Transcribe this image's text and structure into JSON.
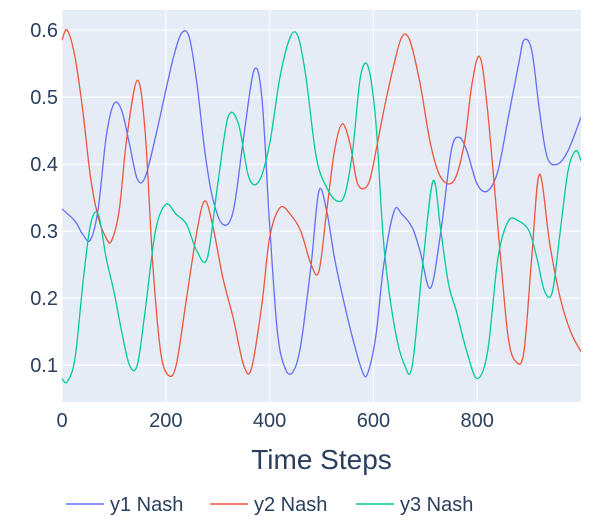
{
  "chart_data": {
    "type": "line",
    "xlabel": "Time Steps",
    "ylabel": "",
    "xlim": [
      0,
      1000
    ],
    "ylim": [
      0.045,
      0.63
    ],
    "xticks": [
      0,
      200,
      400,
      600,
      800
    ],
    "yticks": [
      0.1,
      0.2,
      0.3,
      0.4,
      0.5,
      0.6
    ],
    "grid": true,
    "legend_position": "bottom",
    "series": [
      {
        "name": "y1 Nash",
        "color": "#636efa",
        "x": [
          0,
          25,
          40,
          55,
          70,
          85,
          100,
          115,
          130,
          145,
          160,
          180,
          200,
          215,
          230,
          245,
          260,
          275,
          290,
          310,
          330,
          350,
          370,
          385,
          400,
          415,
          430,
          445,
          460,
          480,
          495,
          510,
          525,
          540,
          560,
          580,
          590,
          605,
          620,
          640,
          655,
          675,
          690,
          710,
          730,
          750,
          765,
          780,
          800,
          820,
          840,
          860,
          880,
          890,
          905,
          920,
          935,
          955,
          975,
          1000
        ],
        "y": [
          0.333,
          0.315,
          0.295,
          0.287,
          0.335,
          0.44,
          0.49,
          0.48,
          0.43,
          0.378,
          0.38,
          0.44,
          0.51,
          0.56,
          0.595,
          0.59,
          0.52,
          0.42,
          0.35,
          0.31,
          0.33,
          0.44,
          0.54,
          0.5,
          0.31,
          0.15,
          0.095,
          0.09,
          0.13,
          0.25,
          0.36,
          0.33,
          0.26,
          0.205,
          0.14,
          0.088,
          0.09,
          0.145,
          0.25,
          0.33,
          0.325,
          0.305,
          0.27,
          0.215,
          0.3,
          0.42,
          0.44,
          0.42,
          0.37,
          0.36,
          0.39,
          0.47,
          0.55,
          0.585,
          0.57,
          0.48,
          0.41,
          0.4,
          0.42,
          0.47
        ]
      },
      {
        "name": "y2 Nash",
        "color": "#ef553b",
        "x": [
          0,
          10,
          25,
          40,
          55,
          70,
          85,
          95,
          110,
          125,
          145,
          160,
          175,
          190,
          205,
          220,
          240,
          260,
          275,
          290,
          310,
          330,
          350,
          365,
          385,
          400,
          420,
          440,
          460,
          480,
          495,
          510,
          525,
          540,
          555,
          570,
          590,
          605,
          620,
          640,
          655,
          670,
          690,
          710,
          730,
          755,
          775,
          790,
          805,
          820,
          845,
          860,
          875,
          890,
          905,
          920,
          940,
          960,
          980,
          1000
        ],
        "y": [
          0.585,
          0.6,
          0.56,
          0.48,
          0.38,
          0.32,
          0.29,
          0.285,
          0.33,
          0.44,
          0.525,
          0.45,
          0.25,
          0.12,
          0.085,
          0.1,
          0.2,
          0.3,
          0.345,
          0.31,
          0.23,
          0.17,
          0.1,
          0.095,
          0.19,
          0.29,
          0.335,
          0.325,
          0.3,
          0.25,
          0.24,
          0.33,
          0.42,
          0.46,
          0.43,
          0.37,
          0.37,
          0.42,
          0.48,
          0.55,
          0.59,
          0.585,
          0.52,
          0.43,
          0.38,
          0.375,
          0.43,
          0.52,
          0.56,
          0.48,
          0.26,
          0.14,
          0.105,
          0.12,
          0.26,
          0.385,
          0.28,
          0.2,
          0.15,
          0.12
        ]
      },
      {
        "name": "y3 Nash",
        "color": "#00cc96",
        "x": [
          0,
          10,
          25,
          40,
          55,
          70,
          85,
          100,
          115,
          130,
          145,
          160,
          180,
          200,
          220,
          240,
          260,
          280,
          300,
          320,
          340,
          360,
          380,
          400,
          420,
          440,
          455,
          470,
          490,
          510,
          530,
          545,
          560,
          575,
          590,
          605,
          620,
          640,
          660,
          675,
          695,
          715,
          730,
          745,
          760,
          780,
          800,
          820,
          840,
          860,
          880,
          900,
          915,
          930,
          945,
          960,
          975,
          990,
          1000
        ],
        "y": [
          0.08,
          0.075,
          0.11,
          0.22,
          0.31,
          0.325,
          0.26,
          0.21,
          0.15,
          0.1,
          0.1,
          0.18,
          0.3,
          0.34,
          0.325,
          0.31,
          0.27,
          0.26,
          0.37,
          0.47,
          0.46,
          0.38,
          0.375,
          0.43,
          0.53,
          0.59,
          0.59,
          0.53,
          0.41,
          0.365,
          0.345,
          0.355,
          0.42,
          0.53,
          0.545,
          0.46,
          0.28,
          0.16,
          0.1,
          0.1,
          0.25,
          0.375,
          0.3,
          0.22,
          0.18,
          0.12,
          0.08,
          0.12,
          0.26,
          0.315,
          0.315,
          0.3,
          0.26,
          0.21,
          0.21,
          0.3,
          0.39,
          0.42,
          0.405
        ]
      }
    ]
  }
}
